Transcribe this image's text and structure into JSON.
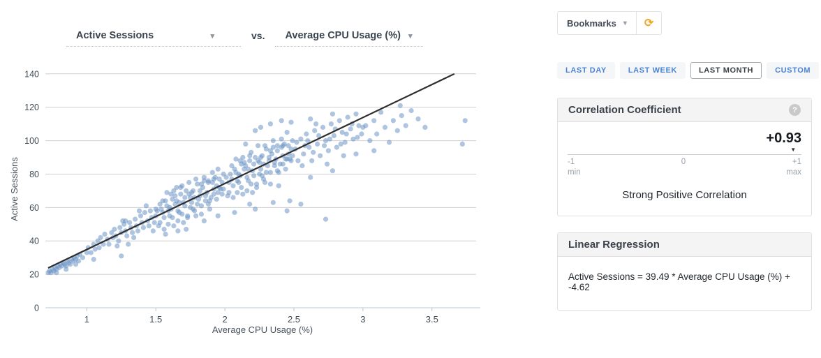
{
  "icons": {
    "caret_down": "▾",
    "refresh": "⟳",
    "help": "?",
    "marker_down": "▼"
  },
  "controls": {
    "x_series_label": "Active Sessions",
    "vs_label": "vs.",
    "y_series_label": "Average CPU Usage (%)",
    "bookmarks_label": "Bookmarks",
    "time_ranges": {
      "options": [
        "LAST DAY",
        "LAST WEEK",
        "LAST MONTH",
        "CUSTOM"
      ],
      "selected": "LAST MONTH"
    }
  },
  "correlation": {
    "title": "Correlation Coefficient",
    "value": "+0.93",
    "value_numeric": 0.93,
    "scale": {
      "min_label": "-1",
      "min_sub": "min",
      "mid_label": "0",
      "max_label": "+1",
      "max_sub": "max",
      "range": [
        -1,
        1
      ]
    },
    "description": "Strong Positive Correlation"
  },
  "regression": {
    "title": "Linear Regression",
    "formula": "Active Sessions = 39.49 * Average CPU Usage (%) + -4.62"
  },
  "colors": {
    "point": "#6b93c4",
    "regression_line": "#2f2f2f",
    "grid": "#cfcfcf",
    "axis": "#b3c9d9",
    "accent_blue": "#4a82d4",
    "refresh_orange": "#f5a623"
  },
  "chart_data": {
    "type": "scatter",
    "xlabel": "Average CPU Usage (%)",
    "ylabel": "Active Sessions",
    "xlim": [
      0.7,
      3.85
    ],
    "ylim": [
      0,
      142
    ],
    "xticks": [
      1,
      1.5,
      2,
      2.5,
      3,
      3.5
    ],
    "yticks": [
      0,
      20,
      40,
      60,
      80,
      100,
      120,
      140
    ],
    "grid": "horizontal",
    "legend": "none",
    "point_color": "#6b93c4",
    "point_opacity": 0.55,
    "line_color": "#2f2f2f",
    "regression": {
      "slope": 39.49,
      "intercept": -4.62,
      "x_start": 0.72,
      "x_end": 3.662
    },
    "points": [
      [
        0.72,
        21
      ],
      [
        0.73,
        22
      ],
      [
        0.74,
        21
      ],
      [
        0.75,
        23
      ],
      [
        0.76,
        22
      ],
      [
        0.77,
        24
      ],
      [
        0.78,
        23
      ],
      [
        0.79,
        25
      ],
      [
        0.8,
        24
      ],
      [
        0.81,
        26
      ],
      [
        0.82,
        25
      ],
      [
        0.83,
        27
      ],
      [
        0.84,
        26
      ],
      [
        0.85,
        25
      ],
      [
        0.86,
        28
      ],
      [
        0.87,
        27
      ],
      [
        0.88,
        26
      ],
      [
        0.89,
        29
      ],
      [
        0.9,
        28
      ],
      [
        0.91,
        30
      ],
      [
        0.92,
        29
      ],
      [
        0.93,
        31
      ],
      [
        0.94,
        28
      ],
      [
        0.95,
        32
      ],
      [
        0.97,
        30
      ],
      [
        1,
        33
      ],
      [
        0.78,
        21
      ],
      [
        0.85,
        23
      ],
      [
        0.92,
        26
      ],
      [
        1.05,
        29
      ],
      [
        1.01,
        36
      ],
      [
        1.03,
        33
      ],
      [
        1.05,
        38
      ],
      [
        1.06,
        35
      ],
      [
        1.08,
        40
      ],
      [
        1.09,
        36
      ],
      [
        1.1,
        42
      ],
      [
        1.12,
        38
      ],
      [
        1.13,
        44
      ],
      [
        1.15,
        41
      ],
      [
        1.16,
        38
      ],
      [
        1.18,
        45
      ],
      [
        1.19,
        42
      ],
      [
        1.2,
        47
      ],
      [
        1.21,
        43
      ],
      [
        1.23,
        40
      ],
      [
        1.24,
        48
      ],
      [
        1.25,
        45
      ],
      [
        1.27,
        50
      ],
      [
        1.28,
        46
      ],
      [
        1.29,
        43
      ],
      [
        1.31,
        51
      ],
      [
        1.32,
        48
      ],
      [
        1.33,
        45
      ],
      [
        1.35,
        53
      ],
      [
        1.36,
        49
      ],
      [
        1.37,
        46
      ],
      [
        1.39,
        55
      ],
      [
        1.4,
        51
      ],
      [
        1.41,
        48
      ],
      [
        1.42,
        57
      ],
      [
        1.44,
        52
      ],
      [
        1.45,
        49
      ],
      [
        1.46,
        58
      ],
      [
        1.47,
        54
      ],
      [
        1.49,
        51
      ],
      [
        1.5,
        59
      ],
      [
        1.5,
        55
      ],
      [
        1.22,
        37
      ],
      [
        1.34,
        42
      ],
      [
        1.43,
        61
      ],
      [
        1.48,
        46
      ],
      [
        1.26,
        52
      ],
      [
        1.38,
        58
      ],
      [
        1.3,
        38
      ],
      [
        1.25,
        31
      ],
      [
        1.28,
        52
      ],
      [
        1.51,
        58
      ],
      [
        1.53,
        51
      ],
      [
        1.55,
        64
      ],
      [
        1.56,
        54
      ],
      [
        1.58,
        69
      ],
      [
        1.59,
        50
      ],
      [
        1.6,
        60
      ],
      [
        1.62,
        65
      ],
      [
        1.63,
        49
      ],
      [
        1.65,
        64
      ],
      [
        1.66,
        58
      ],
      [
        1.68,
        72
      ],
      [
        1.69,
        56
      ],
      [
        1.7,
        63
      ],
      [
        1.72,
        70
      ],
      [
        1.73,
        54
      ],
      [
        1.75,
        66
      ],
      [
        1.76,
        69
      ],
      [
        1.78,
        58
      ],
      [
        1.79,
        77
      ],
      [
        1.8,
        62
      ],
      [
        1.82,
        70
      ],
      [
        1.83,
        56
      ],
      [
        1.85,
        76
      ],
      [
        1.86,
        67
      ],
      [
        1.88,
        75
      ],
      [
        1.89,
        64
      ],
      [
        1.91,
        81
      ],
      [
        1.92,
        68
      ],
      [
        1.94,
        73
      ],
      [
        1.52,
        49
      ],
      [
        1.54,
        59
      ],
      [
        1.56,
        47
      ],
      [
        1.57,
        64
      ],
      [
        1.59,
        58
      ],
      [
        1.61,
        68
      ],
      [
        1.62,
        54
      ],
      [
        1.64,
        62
      ],
      [
        1.65,
        72
      ],
      [
        1.67,
        57
      ],
      [
        1.68,
        68
      ],
      [
        1.7,
        51
      ],
      [
        1.71,
        66
      ],
      [
        1.73,
        55
      ],
      [
        1.74,
        75
      ],
      [
        1.76,
        63
      ],
      [
        1.77,
        70
      ],
      [
        1.79,
        55
      ],
      [
        1.8,
        74
      ],
      [
        1.82,
        67
      ],
      [
        1.83,
        61
      ],
      [
        1.85,
        78
      ],
      [
        1.86,
        64
      ],
      [
        1.88,
        76
      ],
      [
        1.89,
        59
      ],
      [
        1.91,
        75
      ],
      [
        1.92,
        71
      ],
      [
        1.94,
        65
      ],
      [
        1.95,
        83
      ],
      [
        1.97,
        71
      ],
      [
        1.53,
        62
      ],
      [
        1.58,
        61
      ],
      [
        1.63,
        70
      ],
      [
        1.66,
        52
      ],
      [
        1.71,
        61
      ],
      [
        1.74,
        68
      ],
      [
        1.77,
        59
      ],
      [
        1.81,
        65
      ],
      [
        1.84,
        72
      ],
      [
        1.87,
        69
      ],
      [
        1.9,
        66
      ],
      [
        1.93,
        78
      ],
      [
        1.95,
        69
      ],
      [
        1.96,
        77
      ],
      [
        1.98,
        68
      ],
      [
        1.99,
        80
      ],
      [
        1.55,
        57
      ],
      [
        1.6,
        55
      ],
      [
        1.64,
        67
      ],
      [
        1.69,
        73
      ],
      [
        1.75,
        60
      ],
      [
        1.78,
        66
      ],
      [
        1.83,
        74
      ],
      [
        1.88,
        62
      ],
      [
        1.92,
        77
      ],
      [
        1.96,
        72
      ],
      [
        1.98,
        75
      ],
      [
        1.99,
        71
      ],
      [
        1.61,
        59
      ],
      [
        1.67,
        63
      ],
      [
        1.57,
        44
      ],
      [
        1.72,
        47
      ],
      [
        1.85,
        52
      ],
      [
        1.95,
        55
      ],
      [
        1.66,
        46
      ],
      [
        2.01,
        78
      ],
      [
        2.03,
        69
      ],
      [
        2.05,
        85
      ],
      [
        2.06,
        73
      ],
      [
        2.08,
        89
      ],
      [
        2.09,
        69
      ],
      [
        2.1,
        80
      ],
      [
        2.12,
        86
      ],
      [
        2.13,
        68
      ],
      [
        2.15,
        85
      ],
      [
        2.16,
        78
      ],
      [
        2.18,
        91
      ],
      [
        2.19,
        74
      ],
      [
        2.2,
        82
      ],
      [
        2.22,
        90
      ],
      [
        2.23,
        72
      ],
      [
        2.25,
        87
      ],
      [
        2.26,
        90
      ],
      [
        2.28,
        77
      ],
      [
        2.29,
        97
      ],
      [
        2.3,
        81
      ],
      [
        2.32,
        90
      ],
      [
        2.33,
        74
      ],
      [
        2.35,
        96
      ],
      [
        2.36,
        87
      ],
      [
        2.38,
        94
      ],
      [
        2.39,
        81
      ],
      [
        2.41,
        101
      ],
      [
        2.42,
        86
      ],
      [
        2.44,
        89
      ],
      [
        2.02,
        67
      ],
      [
        2.04,
        80
      ],
      [
        2.06,
        66
      ],
      [
        2.07,
        83
      ],
      [
        2.09,
        76
      ],
      [
        2.11,
        88
      ],
      [
        2.12,
        72
      ],
      [
        2.14,
        83
      ],
      [
        2.15,
        98
      ],
      [
        2.17,
        76
      ],
      [
        2.18,
        88
      ],
      [
        2.2,
        69
      ],
      [
        2.21,
        86
      ],
      [
        2.23,
        74
      ],
      [
        2.24,
        97
      ],
      [
        2.26,
        83
      ],
      [
        2.27,
        91
      ],
      [
        2.29,
        75
      ],
      [
        2.3,
        95
      ],
      [
        2.32,
        88
      ],
      [
        2.33,
        81
      ],
      [
        2.35,
        100
      ],
      [
        2.36,
        85
      ],
      [
        2.38,
        97
      ],
      [
        2.39,
        73
      ],
      [
        2.41,
        96
      ],
      [
        2.42,
        91
      ],
      [
        2.44,
        83
      ],
      [
        2.45,
        105
      ],
      [
        2.47,
        89
      ],
      [
        2.03,
        75
      ],
      [
        2.08,
        81
      ],
      [
        2.13,
        90
      ],
      [
        2.16,
        70
      ],
      [
        2.21,
        79
      ],
      [
        2.24,
        88
      ],
      [
        2.27,
        79
      ],
      [
        2.31,
        85
      ],
      [
        2.34,
        92
      ],
      [
        2.37,
        89
      ],
      [
        2.4,
        86
      ],
      [
        2.43,
        98
      ],
      [
        2.45,
        89
      ],
      [
        2.46,
        97
      ],
      [
        2.48,
        88
      ],
      [
        2.49,
        100
      ],
      [
        2.05,
        77
      ],
      [
        2.1,
        75
      ],
      [
        2.14,
        87
      ],
      [
        2.19,
        93
      ],
      [
        2.25,
        80
      ],
      [
        2.28,
        86
      ],
      [
        2.33,
        94
      ],
      [
        2.38,
        82
      ],
      [
        2.42,
        97
      ],
      [
        2.46,
        92
      ],
      [
        2.48,
        95
      ],
      [
        2.49,
        91
      ],
      [
        2.11,
        79
      ],
      [
        2.17,
        83
      ],
      [
        2.07,
        57
      ],
      [
        2.22,
        59
      ],
      [
        2.35,
        63
      ],
      [
        2.45,
        58
      ],
      [
        2.18,
        62
      ],
      [
        2.26,
        108
      ],
      [
        2.33,
        110
      ],
      [
        2.41,
        112
      ],
      [
        2.22,
        106
      ],
      [
        2.48,
        111
      ],
      [
        2.51,
        95
      ],
      [
        2.53,
        88
      ],
      [
        2.55,
        101
      ],
      [
        2.57,
        92
      ],
      [
        2.59,
        104
      ],
      [
        2.61,
        96
      ],
      [
        2.63,
        88
      ],
      [
        2.65,
        106
      ],
      [
        2.67,
        98
      ],
      [
        2.69,
        91
      ],
      [
        2.71,
        108
      ],
      [
        2.73,
        100
      ],
      [
        2.75,
        94
      ],
      [
        2.77,
        110
      ],
      [
        2.79,
        103
      ],
      [
        2.81,
        96
      ],
      [
        2.83,
        112
      ],
      [
        2.85,
        105
      ],
      [
        2.87,
        99
      ],
      [
        2.89,
        114
      ],
      [
        2.91,
        107
      ],
      [
        2.93,
        101
      ],
      [
        2.95,
        116
      ],
      [
        2.97,
        109
      ],
      [
        2.99,
        104
      ],
      [
        2.52,
        99
      ],
      [
        2.56,
        85
      ],
      [
        2.6,
        100
      ],
      [
        2.64,
        93
      ],
      [
        2.68,
        103
      ],
      [
        2.72,
        97
      ],
      [
        2.76,
        101
      ],
      [
        2.8,
        107
      ],
      [
        2.84,
        98
      ],
      [
        2.88,
        104
      ],
      [
        2.92,
        110
      ],
      [
        2.96,
        102
      ],
      [
        3,
        108
      ],
      [
        2.58,
        97
      ],
      [
        2.66,
        110
      ],
      [
        2.74,
        86
      ],
      [
        2.86,
        91
      ],
      [
        2.62,
        78
      ],
      [
        2.78,
        82
      ],
      [
        2.95,
        92
      ],
      [
        2.47,
        64
      ],
      [
        2.55,
        62
      ],
      [
        2.73,
        53
      ],
      [
        2.62,
        113
      ],
      [
        2.78,
        116
      ],
      [
        3.02,
        109
      ],
      [
        3.05,
        100
      ],
      [
        3.08,
        112
      ],
      [
        3.1,
        104
      ],
      [
        3.13,
        117
      ],
      [
        3.16,
        108
      ],
      [
        3.27,
        121
      ],
      [
        3.22,
        112
      ],
      [
        3.25,
        106
      ],
      [
        3.28,
        115
      ],
      [
        3.31,
        109
      ],
      [
        3.35,
        118
      ],
      [
        3.4,
        113
      ],
      [
        3.45,
        108
      ],
      [
        3.19,
        99
      ],
      [
        3.08,
        94
      ],
      [
        3.74,
        112
      ],
      [
        3.72,
        98
      ]
    ]
  }
}
